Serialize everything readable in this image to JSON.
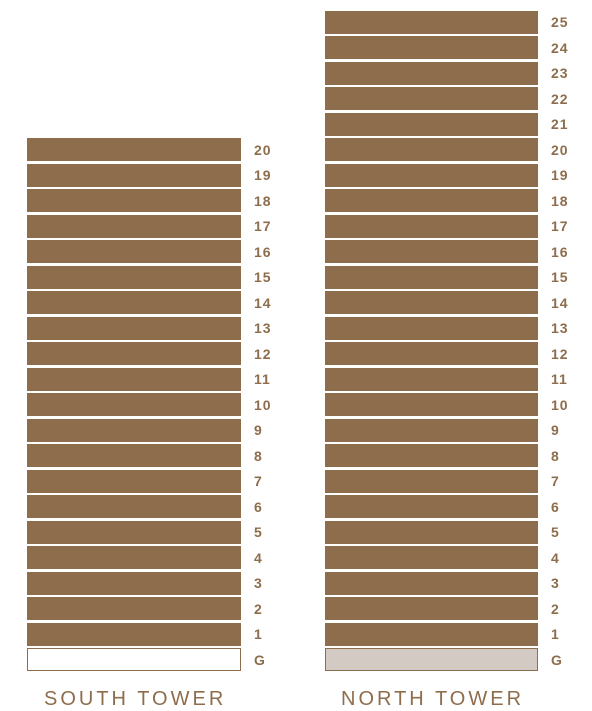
{
  "colors": {
    "floor": "#8d6d4c",
    "label": "#8d6d4c",
    "ground_south_fill": "#ffffff",
    "ground_north_fill": "#d3cbc3",
    "ground_border": "#8d6d4c"
  },
  "south_tower": {
    "name": "SOUTH TOWER",
    "floors": [
      "G",
      "1",
      "2",
      "3",
      "4",
      "5",
      "6",
      "7",
      "8",
      "9",
      "10",
      "11",
      "12",
      "13",
      "14",
      "15",
      "16",
      "17",
      "18",
      "19",
      "20"
    ]
  },
  "north_tower": {
    "name": "NORTH TOWER",
    "floors": [
      "G",
      "1",
      "2",
      "3",
      "4",
      "5",
      "6",
      "7",
      "8",
      "9",
      "10",
      "11",
      "12",
      "13",
      "14",
      "15",
      "16",
      "17",
      "18",
      "19",
      "20",
      "21",
      "22",
      "23",
      "24",
      "25"
    ]
  }
}
